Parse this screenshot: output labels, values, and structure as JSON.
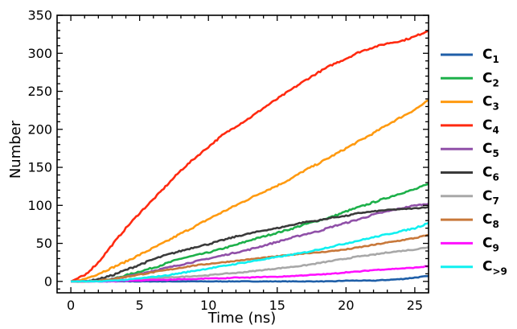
{
  "chart_data": {
    "type": "line",
    "xlabel": "Time (ns)",
    "ylabel": "Number",
    "xlim": [
      -1,
      26
    ],
    "ylim": [
      -15,
      350
    ],
    "xticks": [
      "0",
      "5",
      "10",
      "15",
      "20",
      "25"
    ],
    "xtick_values": [
      0,
      5,
      10,
      15,
      20,
      25
    ],
    "yticks": [
      "0",
      "50",
      "100",
      "150",
      "200",
      "250",
      "300",
      "350"
    ],
    "ytick_values": [
      0,
      50,
      100,
      150,
      200,
      250,
      300,
      350
    ],
    "grid": false,
    "legend_position": "right",
    "x": [
      0,
      1,
      2,
      3,
      4,
      5,
      6,
      7,
      8,
      9,
      10,
      11,
      12,
      13,
      14,
      15,
      16,
      17,
      18,
      19,
      20,
      21,
      22,
      23,
      24,
      25,
      26
    ],
    "series": [
      {
        "name": "C1",
        "label_base": "C",
        "label_sub": "1",
        "color": "#1f5fa8",
        "values": [
          0,
          0,
          0,
          0,
          0,
          0,
          0,
          0,
          0,
          0,
          0,
          0,
          0,
          0,
          0,
          0,
          0,
          0,
          0,
          0,
          1,
          1,
          1,
          2,
          3,
          5,
          7
        ]
      },
      {
        "name": "C2",
        "label_base": "C",
        "label_sub": "2",
        "color": "#1db04a",
        "values": [
          0,
          0,
          1,
          3,
          8,
          13,
          18,
          24,
          30,
          34,
          38,
          43,
          48,
          54,
          59,
          64,
          69,
          75,
          80,
          85,
          92,
          98,
          104,
          110,
          116,
          121,
          128
        ]
      },
      {
        "name": "C3",
        "label_base": "C",
        "label_sub": "3",
        "color": "#ff9a10",
        "values": [
          0,
          3,
          10,
          18,
          26,
          35,
          44,
          53,
          63,
          72,
          82,
          91,
          100,
          109,
          118,
          126,
          135,
          146,
          155,
          165,
          175,
          185,
          195,
          206,
          216,
          226,
          238
        ]
      },
      {
        "name": "C4",
        "label_base": "C",
        "label_sub": "4",
        "color": "#ff2a10",
        "values": [
          0,
          8,
          25,
          48,
          70,
          90,
          108,
          127,
          146,
          162,
          177,
          192,
          204,
          215,
          228,
          240,
          252,
          264,
          275,
          285,
          293,
          302,
          308,
          313,
          316,
          322,
          330
        ]
      },
      {
        "name": "C5",
        "label_base": "C",
        "label_sub": "5",
        "color": "#9050a8",
        "values": [
          0,
          0,
          1,
          3,
          6,
          10,
          14,
          18,
          22,
          26,
          30,
          34,
          38,
          42,
          47,
          52,
          57,
          62,
          66,
          72,
          77,
          82,
          88,
          92,
          96,
          100,
          102
        ]
      },
      {
        "name": "C6",
        "label_base": "C",
        "label_sub": "6",
        "color": "#3a3a3a",
        "values": [
          0,
          0,
          3,
          8,
          15,
          22,
          29,
          35,
          40,
          45,
          49,
          54,
          59,
          63,
          67,
          70,
          74,
          78,
          80,
          84,
          86,
          90,
          92,
          94,
          95,
          96,
          98
        ]
      },
      {
        "name": "C7",
        "label_base": "C",
        "label_sub": "7",
        "color": "#a8a8a8",
        "values": [
          0,
          0,
          0,
          1,
          2,
          3,
          4,
          5,
          6,
          7,
          8,
          10,
          11,
          13,
          15,
          17,
          19,
          21,
          24,
          27,
          30,
          33,
          35,
          38,
          40,
          42,
          45
        ]
      },
      {
        "name": "C8",
        "label_base": "C",
        "label_sub": "8",
        "color": "#c8783a",
        "values": [
          0,
          0,
          1,
          3,
          6,
          9,
          12,
          15,
          18,
          21,
          23,
          25,
          27,
          29,
          31,
          33,
          35,
          37,
          38,
          40,
          42,
          45,
          48,
          51,
          54,
          57,
          61
        ]
      },
      {
        "name": "C9",
        "label_base": "C",
        "label_sub": "9",
        "color": "#ff10ff",
        "values": [
          0,
          0,
          0,
          0,
          1,
          1,
          2,
          2,
          3,
          3,
          4,
          4,
          5,
          5,
          6,
          6,
          7,
          8,
          9,
          10,
          12,
          13,
          15,
          16,
          17,
          18,
          20
        ]
      },
      {
        "name": "C>9",
        "label_base": "C",
        "label_sub": ">9",
        "color": "#10f0f0",
        "values": [
          0,
          0,
          0,
          1,
          2,
          4,
          6,
          8,
          11,
          14,
          17,
          20,
          23,
          26,
          29,
          32,
          35,
          38,
          42,
          46,
          50,
          54,
          58,
          62,
          66,
          70,
          77
        ]
      }
    ]
  }
}
